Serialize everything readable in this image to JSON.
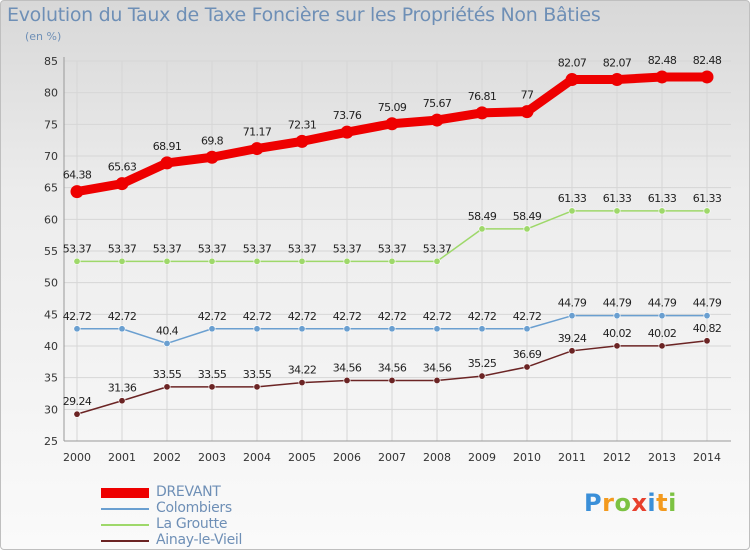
{
  "title": "Evolution du Taux de Taxe Foncière sur les Propriétés Non Bâties",
  "subtitle": "(en %)",
  "logo": {
    "text": "Proxiti",
    "letters": [
      "P",
      "r",
      "o",
      "x",
      "i",
      "t",
      "i"
    ],
    "colors": [
      "#3a8fd8",
      "#f39a1e",
      "#7cc242",
      "#e8402e",
      "#3a8fd8",
      "#f39a1e",
      "#7cc242"
    ]
  },
  "chart_data": {
    "type": "line",
    "title": "Evolution du Taux de Taxe Foncière sur les Propriétés Non Bâties",
    "ylabel": "(en %)",
    "xlabel": "",
    "x": [
      "2000",
      "2001",
      "2002",
      "2003",
      "2004",
      "2005",
      "2006",
      "2007",
      "2008",
      "2009",
      "2010",
      "2011",
      "2012",
      "2013",
      "2014"
    ],
    "ylim": [
      25,
      85
    ],
    "yticks": [
      25,
      30,
      35,
      40,
      45,
      50,
      55,
      60,
      65,
      70,
      75,
      80,
      85
    ],
    "grid": true,
    "legend_position": "bottom-left",
    "series": [
      {
        "name": "DREVANT",
        "color": "#ee0000",
        "values": [
          64.38,
          65.63,
          68.91,
          69.8,
          71.17,
          72.31,
          73.76,
          75.09,
          75.67,
          76.81,
          77,
          82.07,
          82.07,
          82.48,
          82.48
        ],
        "labels": [
          "64.38",
          "65.63",
          "68.91",
          "69.8",
          "71.17",
          "72.31",
          "73.76",
          "75.09",
          "75.67",
          "76.81",
          "77",
          "82.07",
          "82.07",
          "82.48",
          "82.48"
        ]
      },
      {
        "name": "Colombiers",
        "color": "#6a9fd0",
        "values": [
          42.72,
          42.72,
          40.4,
          42.72,
          42.72,
          42.72,
          42.72,
          42.72,
          42.72,
          42.72,
          42.72,
          44.79,
          44.79,
          44.79,
          44.79
        ],
        "labels": [
          "42.72",
          "42.72",
          "40.4",
          "42.72",
          "42.72",
          "42.72",
          "42.72",
          "42.72",
          "42.72",
          "42.72",
          "42.72",
          "44.79",
          "44.79",
          "44.79",
          "44.79"
        ]
      },
      {
        "name": "La Groutte",
        "color": "#9ed86a",
        "values": [
          53.37,
          53.37,
          53.37,
          53.37,
          53.37,
          53.37,
          53.37,
          53.37,
          53.37,
          58.49,
          58.49,
          61.33,
          61.33,
          61.33,
          61.33
        ],
        "labels": [
          "53.37",
          "53.37",
          "53.37",
          "53.37",
          "53.37",
          "53.37",
          "53.37",
          "53.37",
          "53.37",
          "58.49",
          "58.49",
          "61.33",
          "61.33",
          "61.33",
          "61.33"
        ]
      },
      {
        "name": "Ainay-le-Vieil",
        "color": "#6b2424",
        "values": [
          29.24,
          31.36,
          33.55,
          33.55,
          33.55,
          34.22,
          34.56,
          34.56,
          34.56,
          35.25,
          36.69,
          39.24,
          40.02,
          40.02,
          40.82
        ],
        "labels": [
          "29.24",
          "31.36",
          "33.55",
          "33.55",
          "33.55",
          "34.22",
          "34.56",
          "34.56",
          "34.56",
          "35.25",
          "36.69",
          "39.24",
          "40.02",
          "40.02",
          "40.82"
        ]
      }
    ]
  }
}
